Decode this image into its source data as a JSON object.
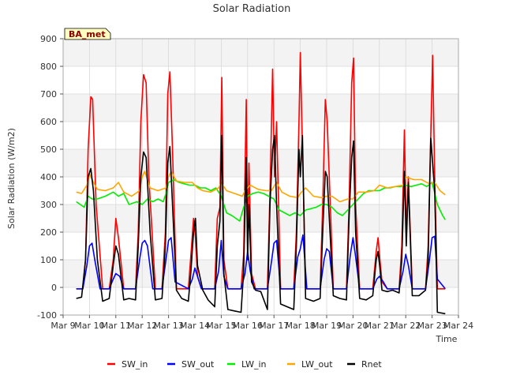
{
  "chart_data": {
    "type": "line",
    "title": "Solar Radiation",
    "badge": "BA_met",
    "xlabel": "Time",
    "ylabel": "Solar Radiation (W/m2)",
    "xlim": [
      9,
      24
    ],
    "ylim": [
      -100,
      900
    ],
    "x_ticks": [
      9,
      10,
      11,
      12,
      13,
      14,
      15,
      16,
      17,
      18,
      19,
      20,
      21,
      22,
      23,
      24
    ],
    "x_tick_labels": [
      "Mar 9",
      "Mar 10",
      "Mar 11",
      "Mar 12",
      "Mar 13",
      "Mar 14",
      "Mar 15",
      "Mar 16",
      "Mar 17",
      "Mar 18",
      "Mar 19",
      "Mar 20",
      "Mar 21",
      "Mar 22",
      "Mar 23",
      "Mar 24"
    ],
    "y_ticks": [
      -100,
      0,
      100,
      200,
      300,
      400,
      500,
      600,
      700,
      800,
      900
    ],
    "grid": true,
    "legend_position": "bottom",
    "series": [
      {
        "name": "SW_in",
        "color": "#ff0000",
        "x": [
          9.5,
          9.75,
          9.85,
          9.95,
          10.05,
          10.12,
          10.25,
          10.5,
          10.75,
          10.9,
          11.0,
          11.1,
          11.3,
          11.5,
          11.75,
          11.85,
          11.95,
          12.05,
          12.15,
          12.25,
          12.5,
          12.75,
          12.88,
          12.97,
          13.05,
          13.15,
          13.3,
          13.5,
          13.75,
          13.85,
          13.95,
          14.02,
          14.1,
          14.25,
          14.5,
          14.75,
          14.85,
          14.95,
          15.02,
          15.1,
          15.25,
          15.5,
          15.75,
          15.85,
          15.95,
          16.0,
          16.05,
          16.15,
          16.3,
          16.5,
          16.75,
          16.85,
          16.95,
          17.02,
          17.1,
          17.25,
          17.5,
          17.75,
          17.85,
          17.95,
          18.0,
          18.08,
          18.2,
          18.5,
          18.75,
          18.85,
          18.95,
          19.02,
          19.1,
          19.25,
          19.5,
          19.75,
          19.85,
          19.95,
          20.02,
          20.1,
          20.25,
          20.5,
          20.75,
          20.88,
          20.95,
          21.02,
          21.1,
          21.3,
          21.5,
          21.75,
          21.85,
          21.95,
          22.02,
          22.1,
          22.25,
          22.5,
          22.75,
          22.85,
          22.95,
          23.02,
          23.1,
          23.2,
          23.5
        ],
        "y": [
          -5,
          -5,
          100,
          500,
          690,
          680,
          300,
          -5,
          -5,
          100,
          250,
          180,
          -5,
          -5,
          -5,
          200,
          600,
          770,
          740,
          400,
          -5,
          -5,
          200,
          700,
          780,
          500,
          -5,
          -5,
          -5,
          120,
          250,
          180,
          40,
          -5,
          -5,
          -5,
          250,
          290,
          760,
          100,
          -5,
          -5,
          -5,
          120,
          680,
          150,
          450,
          50,
          -5,
          -5,
          -5,
          350,
          790,
          400,
          600,
          -5,
          -5,
          -5,
          200,
          600,
          850,
          500,
          -5,
          -5,
          -5,
          300,
          680,
          600,
          400,
          -5,
          -5,
          -5,
          300,
          740,
          830,
          300,
          -5,
          -5,
          -5,
          130,
          180,
          100,
          20,
          -5,
          -5,
          -5,
          150,
          570,
          200,
          400,
          -5,
          -5,
          -5,
          150,
          550,
          840,
          400,
          -5,
          -5
        ]
      },
      {
        "name": "SW_out",
        "color": "#0000ff",
        "x": [
          9.5,
          9.75,
          9.9,
          10.0,
          10.1,
          10.2,
          10.4,
          10.75,
          10.9,
          11.0,
          11.15,
          11.3,
          11.75,
          11.9,
          12.0,
          12.1,
          12.2,
          12.4,
          12.75,
          12.9,
          13.0,
          13.1,
          13.25,
          13.75,
          13.9,
          14.0,
          14.1,
          14.25,
          14.75,
          14.9,
          15.0,
          15.1,
          15.25,
          15.75,
          15.9,
          16.0,
          16.1,
          16.25,
          16.75,
          16.9,
          17.0,
          17.1,
          17.25,
          17.75,
          17.9,
          18.0,
          18.1,
          18.25,
          18.75,
          18.9,
          19.0,
          19.1,
          19.25,
          19.75,
          19.9,
          20.0,
          20.1,
          20.25,
          20.75,
          20.9,
          21.0,
          21.15,
          21.3,
          21.75,
          21.9,
          22.0,
          22.1,
          22.25,
          22.75,
          22.9,
          23.0,
          23.1,
          23.2,
          23.5
        ],
        "y": [
          -5,
          -5,
          80,
          150,
          160,
          100,
          -5,
          -5,
          30,
          50,
          40,
          -5,
          -5,
          100,
          160,
          170,
          150,
          -5,
          -5,
          100,
          170,
          180,
          20,
          -5,
          30,
          70,
          40,
          -5,
          -5,
          60,
          170,
          40,
          -5,
          -5,
          50,
          130,
          60,
          -5,
          -5,
          90,
          160,
          170,
          -5,
          -5,
          110,
          140,
          190,
          -5,
          -5,
          100,
          140,
          130,
          -5,
          -5,
          120,
          180,
          110,
          -5,
          -5,
          30,
          40,
          20,
          -5,
          -5,
          60,
          120,
          80,
          -5,
          -5,
          100,
          180,
          185,
          30,
          -5
        ]
      },
      {
        "name": "LW_in",
        "color": "#00ee00",
        "x": [
          9.5,
          9.65,
          9.8,
          9.95,
          10.1,
          10.3,
          10.6,
          10.9,
          11.1,
          11.3,
          11.5,
          11.8,
          12.0,
          12.2,
          12.4,
          12.6,
          12.8,
          12.9,
          13.0,
          13.2,
          13.4,
          13.6,
          13.8,
          14.0,
          14.2,
          14.4,
          14.6,
          14.8,
          15.0,
          15.2,
          15.4,
          15.55,
          15.7,
          15.85,
          16.0,
          16.2,
          16.4,
          16.6,
          16.8,
          17.0,
          17.2,
          17.4,
          17.6,
          17.8,
          18.0,
          18.2,
          18.4,
          18.6,
          18.8,
          19.0,
          19.2,
          19.4,
          19.6,
          19.8,
          20.0,
          20.2,
          20.4,
          20.6,
          20.8,
          21.0,
          21.2,
          21.4,
          21.6,
          21.8,
          22.0,
          22.2,
          22.4,
          22.6,
          22.8,
          23.0,
          23.2,
          23.4,
          23.5
        ],
        "y": [
          310,
          300,
          290,
          330,
          320,
          320,
          330,
          345,
          330,
          340,
          300,
          310,
          300,
          320,
          310,
          320,
          310,
          340,
          380,
          390,
          380,
          375,
          370,
          370,
          360,
          360,
          350,
          360,
          330,
          270,
          260,
          250,
          240,
          290,
          330,
          340,
          345,
          340,
          330,
          320,
          280,
          270,
          260,
          270,
          260,
          280,
          285,
          290,
          300,
          300,
          290,
          270,
          260,
          280,
          300,
          320,
          340,
          350,
          350,
          350,
          360,
          360,
          365,
          365,
          370,
          365,
          370,
          375,
          365,
          380,
          300,
          260,
          245
        ]
      },
      {
        "name": "LW_out",
        "color": "#ffa500",
        "x": [
          9.5,
          9.7,
          9.9,
          10.0,
          10.15,
          10.3,
          10.6,
          10.9,
          11.1,
          11.3,
          11.6,
          11.9,
          12.0,
          12.1,
          12.3,
          12.6,
          12.9,
          13.0,
          13.1,
          13.3,
          13.6,
          13.9,
          14.1,
          14.3,
          14.6,
          14.9,
          15.0,
          15.2,
          15.5,
          15.8,
          15.9,
          16.1,
          16.4,
          16.7,
          16.9,
          17.1,
          17.3,
          17.6,
          17.9,
          18.0,
          18.2,
          18.5,
          18.8,
          19.0,
          19.2,
          19.5,
          19.8,
          20.0,
          20.2,
          20.5,
          20.8,
          21.0,
          21.3,
          21.6,
          21.9,
          22.0,
          22.3,
          22.6,
          22.9,
          23.1,
          23.3,
          23.5
        ],
        "y": [
          345,
          340,
          370,
          410,
          380,
          355,
          350,
          360,
          380,
          345,
          330,
          350,
          400,
          420,
          360,
          350,
          360,
          400,
          420,
          385,
          380,
          380,
          360,
          350,
          345,
          360,
          380,
          350,
          340,
          330,
          350,
          370,
          355,
          350,
          350,
          380,
          345,
          330,
          325,
          340,
          360,
          330,
          325,
          330,
          330,
          310,
          320,
          320,
          345,
          345,
          350,
          370,
          360,
          365,
          370,
          400,
          390,
          390,
          375,
          380,
          350,
          335
        ]
      },
      {
        "name": "Rnet",
        "color": "#000000",
        "x": [
          9.5,
          9.7,
          9.85,
          9.95,
          10.05,
          10.15,
          10.3,
          10.5,
          10.75,
          10.9,
          11.0,
          11.1,
          11.3,
          11.5,
          11.75,
          11.85,
          11.95,
          12.05,
          12.15,
          12.3,
          12.5,
          12.75,
          12.88,
          12.97,
          13.05,
          13.15,
          13.3,
          13.5,
          13.75,
          13.85,
          13.95,
          14.02,
          14.1,
          14.3,
          14.5,
          14.75,
          14.85,
          14.95,
          15.02,
          15.1,
          15.25,
          15.5,
          15.75,
          15.85,
          15.95,
          16.0,
          16.05,
          16.15,
          16.3,
          16.5,
          16.75,
          16.85,
          16.95,
          17.02,
          17.1,
          17.25,
          17.5,
          17.75,
          17.85,
          17.95,
          18.0,
          18.08,
          18.2,
          18.5,
          18.75,
          18.85,
          18.95,
          19.02,
          19.1,
          19.25,
          19.5,
          19.75,
          19.85,
          19.95,
          20.02,
          20.1,
          20.25,
          20.5,
          20.75,
          20.88,
          20.95,
          21.02,
          21.1,
          21.3,
          21.5,
          21.75,
          21.85,
          21.95,
          22.02,
          22.1,
          22.25,
          22.5,
          22.75,
          22.85,
          22.95,
          23.02,
          23.1,
          23.2,
          23.5
        ],
        "y": [
          -40,
          -35,
          100,
          400,
          430,
          350,
          100,
          -50,
          -40,
          80,
          150,
          120,
          -45,
          -40,
          -45,
          150,
          400,
          490,
          470,
          200,
          -45,
          -40,
          150,
          450,
          510,
          300,
          -10,
          -40,
          -50,
          60,
          200,
          250,
          80,
          -10,
          -45,
          -70,
          150,
          240,
          550,
          50,
          -80,
          -85,
          -90,
          60,
          470,
          100,
          300,
          20,
          -10,
          -15,
          -80,
          300,
          500,
          550,
          300,
          -60,
          -70,
          -80,
          150,
          500,
          400,
          550,
          -40,
          -50,
          -40,
          200,
          420,
          400,
          250,
          -30,
          -40,
          -45,
          250,
          470,
          530,
          200,
          -40,
          -45,
          -30,
          100,
          130,
          70,
          -10,
          -15,
          -10,
          -20,
          100,
          420,
          150,
          380,
          -30,
          -30,
          -10,
          100,
          540,
          450,
          350,
          -90,
          -95
        ]
      }
    ]
  }
}
